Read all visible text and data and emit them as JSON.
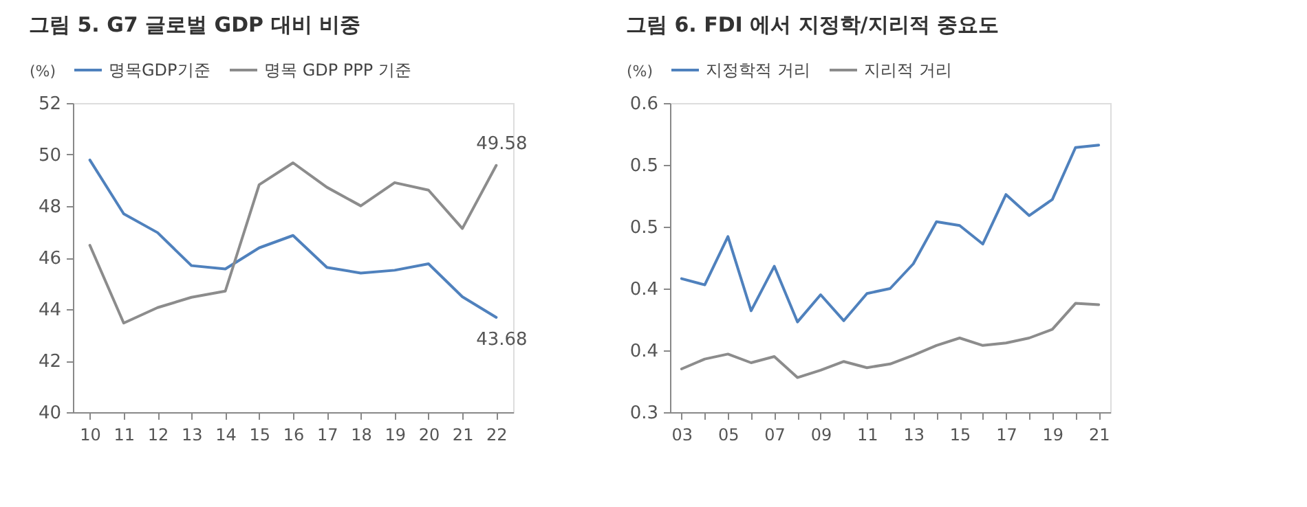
{
  "chart_data": [
    {
      "type": "line",
      "title": "그림 5. G7 글로벌 GDP 대비 비중",
      "ylabel": "(%)",
      "categories": [
        "10",
        "11",
        "12",
        "13",
        "14",
        "15",
        "16",
        "17",
        "18",
        "19",
        "20",
        "21",
        "22"
      ],
      "ylim": [
        40,
        52
      ],
      "yticks": [
        40,
        42,
        44,
        46,
        48,
        50,
        52
      ],
      "grid": false,
      "legend": "top",
      "line_style": "solid",
      "marker": "none",
      "series": [
        {
          "name": "명목GDP기준",
          "color": "#4f81bd",
          "values": [
            49.79,
            47.7,
            46.97,
            45.69,
            45.56,
            46.38,
            46.86,
            45.62,
            45.4,
            45.51,
            45.76,
            44.48,
            43.68
          ],
          "value_labels": [
            null,
            null,
            null,
            null,
            null,
            null,
            null,
            null,
            null,
            null,
            null,
            null,
            "43.68"
          ]
        },
        {
          "name": "명목 GDP PPP 기준",
          "color": "#8c8c8c",
          "values": [
            46.48,
            43.46,
            44.06,
            44.46,
            44.7,
            48.83,
            49.68,
            48.73,
            48.01,
            48.91,
            48.62,
            47.13,
            49.58
          ],
          "value_labels": [
            null,
            null,
            null,
            null,
            null,
            null,
            null,
            null,
            null,
            null,
            null,
            null,
            "49.58"
          ]
        }
      ]
    },
    {
      "type": "line",
      "title": "그림 6. FDI 에서 지정학/지리적 중요도",
      "ylabel": "(%)",
      "categories": [
        "03",
        null,
        "05",
        null,
        "07",
        null,
        "09",
        null,
        "11",
        null,
        "13",
        null,
        "15",
        null,
        "17",
        null,
        "19",
        null,
        "21"
      ],
      "ylim": [
        0.3,
        0.55
      ],
      "yticks": [
        0.3,
        {
          "value": 0.35,
          "label": "0.4"
        },
        0.4,
        {
          "value": 0.45,
          "label": "0.5"
        },
        0.5,
        {
          "value": 0.55,
          "label": "0.6"
        }
      ],
      "grid": false,
      "legend": "top",
      "line_style": "solid",
      "marker": "none",
      "series": [
        {
          "name": "지정학적 거리",
          "color": "#4f81bd",
          "values": [
            0.408,
            0.403,
            0.442,
            0.382,
            0.418,
            0.373,
            0.395,
            0.374,
            0.396,
            0.4,
            0.42,
            0.454,
            0.451,
            0.436,
            0.476,
            0.459,
            0.472,
            0.514,
            0.516
          ]
        },
        {
          "name": "지리적 거리",
          "color": "#8c8c8c",
          "values": [
            0.335,
            0.343,
            0.347,
            0.34,
            0.345,
            0.328,
            0.334,
            0.341,
            0.336,
            0.339,
            0.346,
            0.354,
            0.36,
            0.354,
            0.356,
            0.36,
            0.367,
            0.388,
            0.387
          ]
        }
      ]
    }
  ]
}
